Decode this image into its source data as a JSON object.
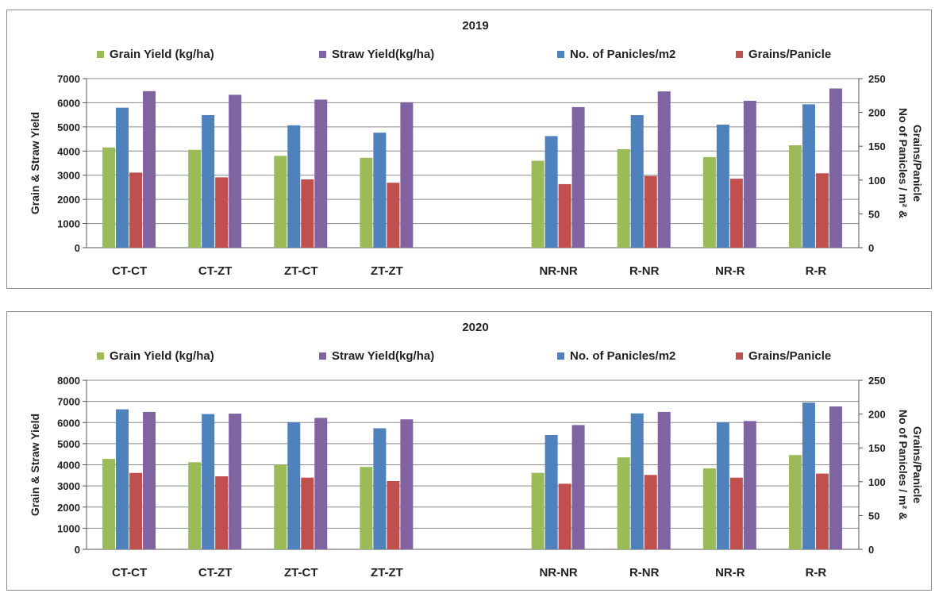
{
  "chart_data": [
    {
      "type": "bar",
      "title": "2019",
      "ylabel": "Grain & Straw Yield",
      "y2label_lines": [
        "No of Panicles / m² &",
        "Grains/Panicle"
      ],
      "categories": [
        "CT-CT",
        "CT-ZT",
        "ZT-CT",
        "ZT-ZT",
        "",
        "NR-NR",
        "R-NR",
        "NR-R",
        "R-R"
      ],
      "ylim": [
        0,
        7000
      ],
      "y_ticks": [
        0,
        1000,
        2000,
        3000,
        4000,
        5000,
        6000,
        7000
      ],
      "y2lim": [
        0,
        250
      ],
      "y2_ticks": [
        0,
        50,
        100,
        150,
        200,
        250
      ],
      "series_order": [
        "Grain Yield (kg/ha)",
        "No. of Panicles/m2",
        "Grains/Panicle",
        "Straw Yield(kg/ha)"
      ],
      "series": [
        {
          "name": "Grain Yield (kg/ha)",
          "axis": "left",
          "color": "#9bbb59",
          "values": [
            4150,
            4050,
            3800,
            3720,
            null,
            3600,
            4080,
            3750,
            4240
          ]
        },
        {
          "name": "Straw Yield(kg/ha)",
          "axis": "left",
          "color": "#8064a2",
          "values": [
            6480,
            6330,
            6130,
            6020,
            null,
            5820,
            6470,
            6080,
            6590
          ]
        },
        {
          "name": "No. of Panicles/m2",
          "axis": "right",
          "color": "#4f81bd",
          "values": [
            207,
            196,
            181,
            170,
            null,
            165,
            196,
            182,
            212
          ]
        },
        {
          "name": "Grains/Panicle",
          "axis": "right",
          "color": "#c0504d",
          "values": [
            111,
            104,
            101,
            96,
            null,
            94,
            106,
            102,
            110
          ]
        }
      ],
      "legend_position": "top",
      "grid": true
    },
    {
      "type": "bar",
      "title": "2020",
      "ylabel": "Grain & Straw Yield",
      "y2label_lines": [
        "No of Panicles / m² &",
        "Grains/Panicle"
      ],
      "categories": [
        "CT-CT",
        "CT-ZT",
        "ZT-CT",
        "ZT-ZT",
        "",
        "NR-NR",
        "R-NR",
        "NR-R",
        "R-R"
      ],
      "ylim": [
        0,
        8000
      ],
      "y_ticks": [
        0,
        1000,
        2000,
        3000,
        4000,
        5000,
        6000,
        7000,
        8000
      ],
      "y2lim": [
        0,
        250
      ],
      "y2_ticks": [
        0,
        50,
        100,
        150,
        200,
        250
      ],
      "series_order": [
        "Grain Yield (kg/ha)",
        "No. of Panicles/m2",
        "Grains/Panicle",
        "Straw Yield(kg/ha)"
      ],
      "series": [
        {
          "name": "Grain Yield (kg/ha)",
          "axis": "left",
          "color": "#9bbb59",
          "values": [
            4280,
            4120,
            4000,
            3900,
            null,
            3620,
            4350,
            3830,
            4460
          ]
        },
        {
          "name": "Straw Yield(kg/ha)",
          "axis": "left",
          "color": "#8064a2",
          "values": [
            6500,
            6420,
            6220,
            6150,
            null,
            5880,
            6500,
            6070,
            6760
          ]
        },
        {
          "name": "No. of Panicles/m2",
          "axis": "right",
          "color": "#4f81bd",
          "values": [
            207,
            200,
            188,
            179,
            null,
            169,
            201,
            188,
            217
          ]
        },
        {
          "name": "Grains/Panicle",
          "axis": "right",
          "color": "#c0504d",
          "values": [
            113,
            108,
            106,
            101,
            null,
            97,
            110,
            106,
            112
          ]
        }
      ],
      "legend_position": "top",
      "grid": true
    }
  ]
}
